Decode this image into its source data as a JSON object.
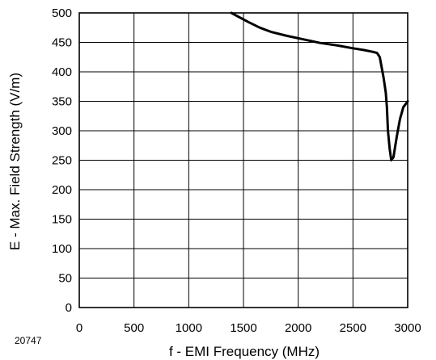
{
  "chart_data": {
    "type": "line",
    "figure_id": "20747",
    "xlabel": "f - EMI Frequency (MHz)",
    "ylabel": "E - Max. Field Strength (V/m)",
    "xlim": [
      0,
      3000
    ],
    "ylim": [
      0,
      500
    ],
    "x_ticks": [
      0,
      500,
      1000,
      1500,
      2000,
      2500,
      3000
    ],
    "y_ticks": [
      0,
      50,
      100,
      150,
      200,
      250,
      300,
      350,
      400,
      450,
      500
    ],
    "grid": true,
    "legend": "none",
    "line_color": "#000000",
    "series": [
      {
        "x": [
          1390,
          1450,
          1550,
          1650,
          1750,
          1900,
          2050,
          2200,
          2350,
          2500,
          2600,
          2680,
          2720,
          2745,
          2760,
          2780,
          2800,
          2810,
          2820,
          2835,
          2850,
          2870,
          2900,
          2930,
          2960,
          3000
        ],
        "y": [
          500,
          494,
          484,
          475,
          468,
          461,
          455,
          449,
          445,
          440,
          437,
          434,
          432,
          425,
          410,
          390,
          365,
          340,
          300,
          270,
          250,
          255,
          290,
          320,
          340,
          350
        ]
      }
    ]
  }
}
